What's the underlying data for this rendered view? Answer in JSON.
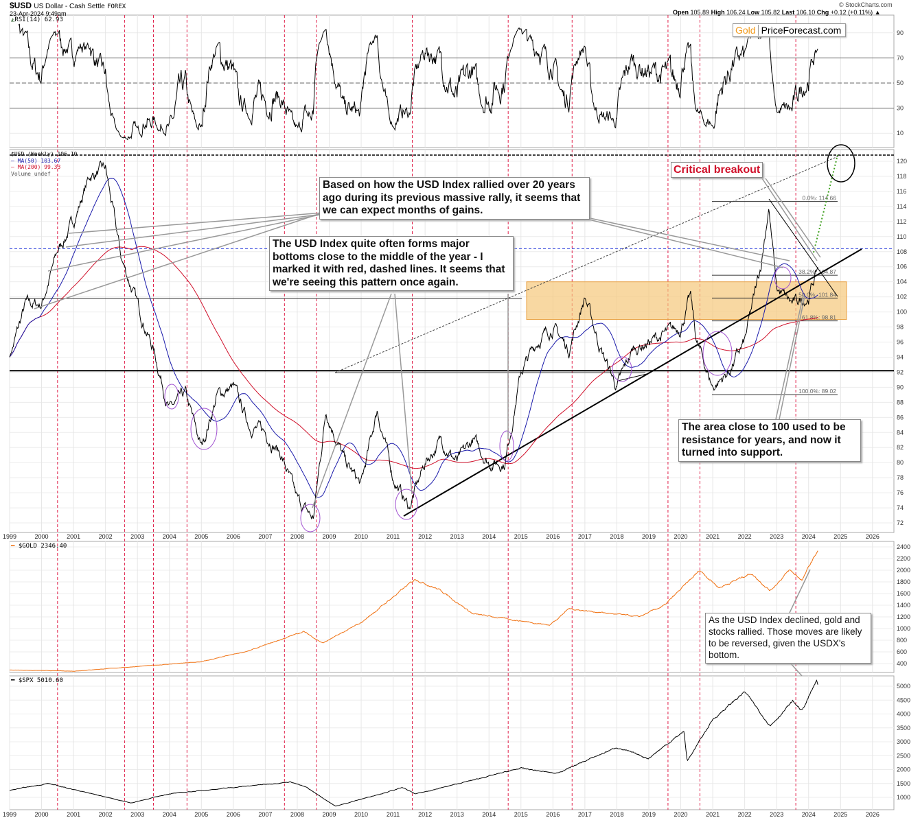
{
  "header": {
    "symbol": "$USD",
    "name": "US Dollar - Cash Settle",
    "exchange": "FOREX",
    "datetime": "23-Apr-2024 9:49am",
    "credit": "© StockCharts.com",
    "ohlc": {
      "open_label": "Open",
      "open": "105.89",
      "high_label": "High",
      "high": "106.24",
      "low_label": "Low",
      "low": "105.82",
      "last_label": "Last",
      "last": "106.10",
      "chg_label": "Chg",
      "chg": "+0.12 (+0.11%)"
    }
  },
  "logo": {
    "part1": "Gold",
    "part2": "PriceForecast.com"
  },
  "colors": {
    "price": "#000000",
    "ma50": "#1a1aaa",
    "ma200": "#d0102a",
    "gold": "#f07010",
    "spx": "#000000",
    "year_marker": "#e0204a",
    "zone": "#f5c77a",
    "ellipse": "#a050d0",
    "forecast": "#40a020",
    "callout_title": "#d0102a"
  },
  "chart_data": [
    {
      "type": "line",
      "panel": "rsi",
      "legend": "RSI(14) 62.93",
      "levels": [
        30,
        50,
        70
      ],
      "ylim": [
        0,
        100
      ],
      "y_ticks": [
        10,
        30,
        50,
        70,
        90
      ],
      "last": 62.93
    },
    {
      "type": "line",
      "panel": "usd",
      "legend": [
        "$USD (Weekly) 106.10",
        "MA(50) 103.67",
        "MA(200) 99.33",
        "Volume undef"
      ],
      "x_ticks": [
        "1999",
        "2000",
        "2001",
        "2002",
        "2003",
        "2004",
        "2005",
        "2006",
        "2007",
        "2008",
        "2009",
        "2010",
        "2011",
        "2012",
        "2013",
        "2014",
        "2015",
        "2016",
        "2017",
        "2018",
        "2019",
        "2020",
        "2021",
        "2022",
        "2023",
        "2024",
        "2025",
        "2026"
      ],
      "ylim": [
        71,
        122
      ],
      "y_ticks": [
        72,
        74,
        76,
        78,
        80,
        82,
        84,
        86,
        88,
        90,
        92,
        94,
        96,
        98,
        100,
        102,
        104,
        106,
        108,
        110,
        112,
        114,
        116,
        118,
        120
      ],
      "series": [
        {
          "name": "$USD",
          "points": [
            [
              1999.0,
              94
            ],
            [
              1999.5,
              101
            ],
            [
              2000.0,
              101
            ],
            [
              2000.5,
              108
            ],
            [
              2001.0,
              112
            ],
            [
              2001.5,
              118
            ],
            [
              2002.0,
              119
            ],
            [
              2002.5,
              107
            ],
            [
              2003.0,
              101
            ],
            [
              2003.5,
              95
            ],
            [
              2004.0,
              87
            ],
            [
              2004.5,
              89
            ],
            [
              2005.0,
              82
            ],
            [
              2005.5,
              89
            ],
            [
              2006.0,
              90
            ],
            [
              2006.5,
              85
            ],
            [
              2007.0,
              84
            ],
            [
              2007.5,
              81
            ],
            [
              2008.0,
              75
            ],
            [
              2008.5,
              72.5
            ],
            [
              2008.9,
              87
            ],
            [
              2009.5,
              80
            ],
            [
              2010.0,
              77
            ],
            [
              2010.5,
              87
            ],
            [
              2011.0,
              78
            ],
            [
              2011.5,
              74
            ],
            [
              2012.0,
              80
            ],
            [
              2012.5,
              83
            ],
            [
              2013.0,
              80
            ],
            [
              2013.5,
              83
            ],
            [
              2014.0,
              80
            ],
            [
              2014.5,
              80
            ],
            [
              2015.0,
              92
            ],
            [
              2015.5,
              96
            ],
            [
              2016.0,
              98
            ],
            [
              2016.5,
              95
            ],
            [
              2017.0,
              102
            ],
            [
              2017.5,
              95
            ],
            [
              2018.0,
              90
            ],
            [
              2018.5,
              95
            ],
            [
              2019.0,
              96
            ],
            [
              2019.5,
              97
            ],
            [
              2020.0,
              98
            ],
            [
              2020.3,
              102
            ],
            [
              2020.5,
              96
            ],
            [
              2021.0,
              90
            ],
            [
              2021.5,
              92
            ],
            [
              2022.0,
              96
            ],
            [
              2022.5,
              106
            ],
            [
              2022.75,
              114
            ],
            [
              2023.0,
              103
            ],
            [
              2023.5,
              101
            ],
            [
              2024.0,
              102
            ],
            [
              2024.3,
              106.1
            ]
          ]
        }
      ],
      "fibonacci": [
        {
          "label": "0.0%: 114.66",
          "value": 114.66
        },
        {
          "label": "38.2%: 104.87",
          "value": 104.87
        },
        {
          "label": "50.0%: 101.84",
          "value": 101.84
        },
        {
          "label": "61.8%: 98.81",
          "value": 98.81
        },
        {
          "label": "100.0%: 89.02",
          "value": 89.02
        }
      ],
      "support_zone": [
        99,
        104
      ],
      "horizontal_levels": [
        92.2,
        108.4
      ],
      "year_markers": [
        2000.5,
        2002.6,
        2003.5,
        2004.55,
        2007.6,
        2008.6,
        2011.6,
        2014.6,
        2016.6,
        2019.6,
        2020.6,
        2023.6
      ]
    },
    {
      "type": "line",
      "panel": "gold",
      "legend": "$GOLD 2346.40",
      "ylim": [
        250,
        2450
      ],
      "y_ticks": [
        400,
        600,
        800,
        1000,
        1200,
        1400,
        1600,
        1800,
        2000,
        2200,
        2400
      ],
      "series": [
        {
          "name": "$GOLD",
          "points": [
            [
              1999.0,
              290
            ],
            [
              2001.0,
              270
            ],
            [
              2003.0,
              350
            ],
            [
              2005.0,
              430
            ],
            [
              2006.5,
              620
            ],
            [
              2008.2,
              950
            ],
            [
              2008.8,
              750
            ],
            [
              2010.0,
              1100
            ],
            [
              2011.7,
              1850
            ],
            [
              2012.5,
              1650
            ],
            [
              2013.5,
              1250
            ],
            [
              2015.9,
              1060
            ],
            [
              2016.5,
              1340
            ],
            [
              2018.7,
              1200
            ],
            [
              2019.5,
              1400
            ],
            [
              2020.6,
              2000
            ],
            [
              2021.2,
              1700
            ],
            [
              2022.2,
              1950
            ],
            [
              2022.8,
              1650
            ],
            [
              2023.4,
              2000
            ],
            [
              2023.8,
              1830
            ],
            [
              2024.0,
              2050
            ],
            [
              2024.3,
              2346.4
            ]
          ]
        }
      ]
    },
    {
      "type": "line",
      "panel": "spx",
      "legend": "$SPX 5010.60",
      "ylim": [
        600,
        5400
      ],
      "y_ticks": [
        1000,
        1500,
        2000,
        2500,
        3000,
        3500,
        4000,
        4500,
        5000
      ],
      "series": [
        {
          "name": "$SPX",
          "points": [
            [
              1999.0,
              1250
            ],
            [
              2000.2,
              1500
            ],
            [
              2002.8,
              800
            ],
            [
              2004.0,
              1130
            ],
            [
              2007.8,
              1560
            ],
            [
              2008.3,
              1350
            ],
            [
              2009.2,
              680
            ],
            [
              2011.3,
              1350
            ],
            [
              2011.7,
              1120
            ],
            [
              2013.0,
              1480
            ],
            [
              2015.0,
              2050
            ],
            [
              2016.1,
              1860
            ],
            [
              2018.0,
              2800
            ],
            [
              2018.98,
              2400
            ],
            [
              2020.1,
              3380
            ],
            [
              2020.2,
              2300
            ],
            [
              2021.0,
              3800
            ],
            [
              2022.0,
              4800
            ],
            [
              2022.8,
              3580
            ],
            [
              2023.5,
              4450
            ],
            [
              2023.8,
              4120
            ],
            [
              2024.25,
              5200
            ],
            [
              2024.3,
              5010.6
            ]
          ]
        }
      ]
    }
  ],
  "annotations": {
    "critical": "Critical breakout",
    "callout1": "Based on how the USD Index rallied over 20 years ago during its previous massive rally, it seems that we can expect months of gains.",
    "callout2": "The USD Index quite often forms major bottoms close to the middle of the year - I marked it with red, dashed lines. It seems that we're seeing this pattern once again.",
    "callout3": "The area close to 100 used to be resistance for years, and now it turned into support.",
    "callout4": "As the USD Index declined, gold and stocks rallied. Those moves are likely to be reversed, given the USDX's bottom."
  }
}
